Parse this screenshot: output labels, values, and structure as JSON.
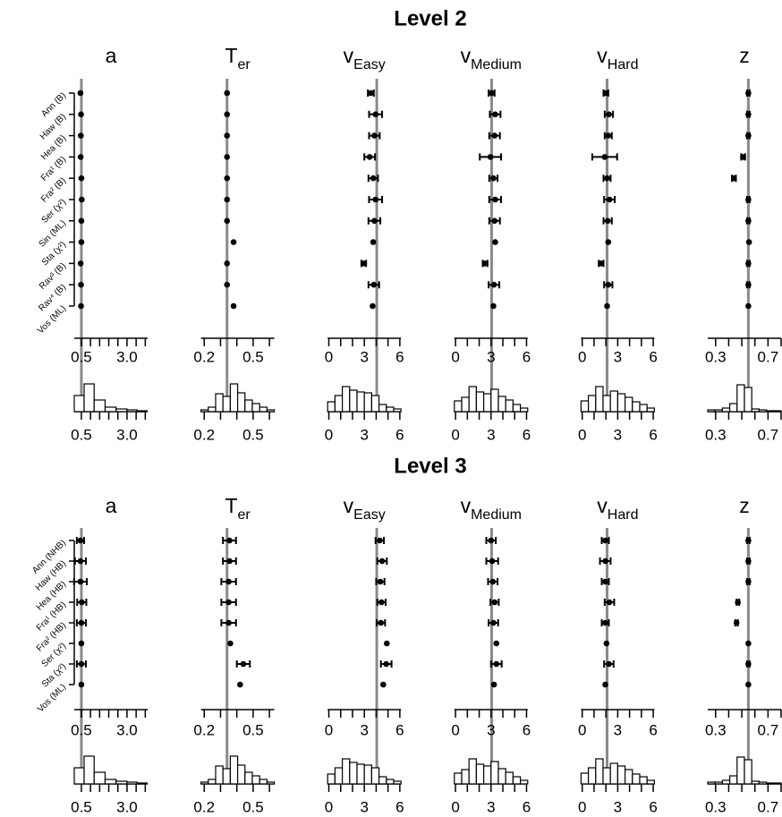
{
  "chart_data": [
    {
      "type": "forest",
      "title": "Level 2",
      "row_labels": [
        "Ann (B)",
        "Haw (B)",
        "Hea (B)",
        "Fra¹ (B)",
        "Fra² (B)",
        "Ser (χ²)",
        "Sin (ML)",
        "Sta (χ²)",
        "Rav³ (B)",
        "Rav⁴ (B)",
        "Vos (ML)"
      ],
      "panels": [
        {
          "symbol": "a",
          "xlim": [
            0.11,
            4.13
          ],
          "xticks": [
            0.5,
            {
              "value": 3,
              "label": "3.0"
            }
          ],
          "xminor": [
            1,
            1.5,
            2,
            2.5,
            3.5,
            4
          ],
          "ref": 0.5,
          "values": [
            0.45,
            0.48,
            0.47,
            0.46,
            0.5,
            0.52,
            0.5,
            0.5,
            0.46,
            0.48,
            0.48
          ],
          "errors": [
            null,
            null,
            null,
            null,
            null,
            null,
            null,
            null,
            null,
            null,
            null
          ],
          "hist": {
            "bins": [
              0.11,
              0.65,
              1.2,
              1.8,
              2.4,
              3.0,
              3.55,
              4.1
            ],
            "counts": [
              18,
              31,
              13,
              5,
              3,
              2,
              1
            ]
          }
        },
        {
          "symbol": "T",
          "subscript": "er",
          "xlim": [
            0.18,
            0.63
          ],
          "xticks": [
            0.2,
            0.5
          ],
          "xminor": [
            0.3,
            0.4,
            0.6
          ],
          "ref": 0.34,
          "values": [
            0.34,
            0.34,
            0.34,
            0.34,
            0.34,
            0.34,
            0.34,
            0.38,
            0.34,
            0.34,
            0.38
          ],
          "errors": [
            null,
            null,
            null,
            null,
            null,
            null,
            null,
            null,
            null,
            null,
            null
          ],
          "hist": {
            "bins": [
              0.18,
              0.225,
              0.27,
              0.315,
              0.36,
              0.405,
              0.45,
              0.495,
              0.54,
              0.585,
              0.63
            ],
            "counts": [
              2,
              5,
              20,
              17,
              31,
              21,
              13,
              9,
              5,
              2
            ]
          }
        },
        {
          "symbol": "v",
          "subscript": "Easy",
          "xlim": [
            -0.1,
            6.1
          ],
          "xticks": [
            0,
            3,
            6
          ],
          "xminor": [
            1,
            2,
            4,
            5
          ],
          "ref": 4.05,
          "values": [
            3.55,
            3.95,
            3.85,
            3.45,
            3.75,
            3.95,
            3.85,
            3.75,
            2.95,
            3.8,
            3.7
          ],
          "errors": [
            0.25,
            0.55,
            0.45,
            0.45,
            0.4,
            0.55,
            0.5,
            null,
            0.2,
            0.45,
            null
          ],
          "hist": {
            "bins": [
              -0.1,
              0.52,
              1.14,
              1.76,
              2.38,
              3.0,
              3.62,
              4.24,
              4.86,
              5.48,
              6.1
            ],
            "counts": [
              11,
              18,
              28,
              24,
              22,
              21,
              18,
              8,
              5,
              3
            ]
          }
        },
        {
          "symbol": "v",
          "subscript": "Medium",
          "xlim": [
            -0.1,
            6.1
          ],
          "xticks": [
            0,
            3,
            6
          ],
          "xminor": [
            1,
            2,
            4,
            5
          ],
          "ref": 3.05,
          "values": [
            3.05,
            3.35,
            3.3,
            2.95,
            3.2,
            3.35,
            3.3,
            3.35,
            2.5,
            3.25,
            3.2
          ],
          "errors": [
            0.25,
            0.45,
            0.45,
            0.9,
            0.35,
            0.5,
            0.45,
            null,
            0.2,
            0.45,
            null
          ],
          "hist": {
            "bins": [
              -0.1,
              0.52,
              1.14,
              1.76,
              2.38,
              3.0,
              3.62,
              4.24,
              4.86,
              5.48,
              6.1
            ],
            "counts": [
              12,
              16,
              28,
              22,
              20,
              25,
              17,
              13,
              8,
              4
            ]
          }
        },
        {
          "symbol": "v",
          "subscript": "Hard",
          "xlim": [
            -0.1,
            6.1
          ],
          "xticks": [
            0,
            3,
            6
          ],
          "xminor": [
            1,
            2,
            4,
            5
          ],
          "ref": 2.1,
          "values": [
            2.0,
            2.25,
            2.2,
            1.9,
            2.1,
            2.3,
            2.15,
            2.2,
            1.6,
            2.2,
            2.1
          ],
          "errors": [
            0.2,
            0.35,
            0.3,
            1.05,
            0.3,
            0.45,
            0.35,
            null,
            0.2,
            0.35,
            null
          ],
          "hist": {
            "bins": [
              -0.1,
              0.52,
              1.14,
              1.76,
              2.38,
              3.0,
              3.62,
              4.24,
              4.86,
              5.48,
              6.1
            ],
            "counts": [
              12,
              18,
              28,
              18,
              23,
              20,
              16,
              11,
              8,
              4
            ]
          }
        },
        {
          "symbol": "z",
          "xlim": [
            0.24,
            0.8
          ],
          "xticks": [
            0.3,
            0.7
          ],
          "xminor": [
            0.4,
            0.5,
            0.6,
            0.8
          ],
          "ref": 0.55,
          "values": [
            0.55,
            0.55,
            0.55,
            0.51,
            0.44,
            0.55,
            0.55,
            0.555,
            0.55,
            0.55,
            0.55
          ],
          "errors": [
            0.01,
            0.01,
            0.01,
            0.015,
            0.015,
            0.01,
            0.01,
            null,
            0.01,
            0.01,
            null
          ],
          "hist": {
            "bins": [
              0.24,
              0.296,
              0.352,
              0.408,
              0.464,
              0.52,
              0.576,
              0.632,
              0.688,
              0.744,
              0.8
            ],
            "counts": [
              2,
              2,
              4,
              9,
              30,
              27,
              3,
              2,
              1,
              1
            ]
          }
        }
      ]
    },
    {
      "type": "forest",
      "title": "Level 3",
      "row_labels": [
        "Ann (NHB)",
        "Haw (HB)",
        "Hea (HB)",
        "Fra¹ (HB)",
        "Fra² (HB)",
        "Ser (χ²)",
        "Sta (χ²)",
        "Vos (ML)"
      ],
      "panels": [
        {
          "symbol": "a",
          "xlim": [
            0.11,
            4.13
          ],
          "xticks": [
            0.5,
            {
              "value": 3,
              "label": "3.0"
            }
          ],
          "xminor": [
            1,
            1.5,
            2,
            2.5,
            3.5,
            4
          ],
          "ref": 0.5,
          "values": [
            0.45,
            0.45,
            0.45,
            0.52,
            0.5,
            0.5,
            0.5,
            0.5
          ],
          "errors": [
            0.2,
            0.3,
            0.35,
            0.25,
            0.25,
            null,
            0.25,
            null
          ],
          "hist": {
            "bins": [
              0.11,
              0.65,
              1.2,
              1.8,
              2.4,
              3.0,
              3.55,
              4.1
            ],
            "counts": [
              18,
              31,
              13,
              5,
              3,
              2,
              1
            ]
          }
        },
        {
          "symbol": "T",
          "subscript": "er",
          "xlim": [
            0.18,
            0.63
          ],
          "xticks": [
            0.2,
            0.5
          ],
          "xminor": [
            0.3,
            0.4,
            0.6
          ],
          "ref": 0.34,
          "values": [
            0.355,
            0.355,
            0.35,
            0.35,
            0.35,
            0.36,
            0.44,
            0.42
          ],
          "errors": [
            0.04,
            0.04,
            0.045,
            0.045,
            0.045,
            null,
            0.04,
            null
          ],
          "hist": {
            "bins": [
              0.18,
              0.225,
              0.27,
              0.315,
              0.36,
              0.405,
              0.45,
              0.495,
              0.54,
              0.585,
              0.63
            ],
            "counts": [
              2,
              5,
              20,
              17,
              31,
              21,
              13,
              9,
              5,
              2
            ]
          }
        },
        {
          "symbol": "v",
          "subscript": "Easy",
          "xlim": [
            -0.1,
            6.1
          ],
          "xticks": [
            0,
            3,
            6
          ],
          "xminor": [
            1,
            2,
            4,
            5
          ],
          "ref": 4.05,
          "values": [
            4.3,
            4.5,
            4.35,
            4.45,
            4.4,
            4.9,
            4.85,
            4.6
          ],
          "errors": [
            0.35,
            0.4,
            0.35,
            0.35,
            0.35,
            null,
            0.45,
            null
          ],
          "hist": {
            "bins": [
              -0.1,
              0.52,
              1.14,
              1.76,
              2.38,
              3.0,
              3.62,
              4.24,
              4.86,
              5.48,
              6.1
            ],
            "counts": [
              11,
              18,
              28,
              24,
              22,
              21,
              18,
              8,
              5,
              3
            ]
          }
        },
        {
          "symbol": "v",
          "subscript": "Medium",
          "xlim": [
            -0.1,
            6.1
          ],
          "xticks": [
            0,
            3,
            6
          ],
          "xminor": [
            1,
            2,
            4,
            5
          ],
          "ref": 3.05,
          "values": [
            3.0,
            3.1,
            3.15,
            3.3,
            3.2,
            3.45,
            3.45,
            3.25
          ],
          "errors": [
            0.4,
            0.5,
            0.4,
            0.35,
            0.4,
            null,
            0.45,
            null
          ],
          "hist": {
            "bins": [
              -0.1,
              0.52,
              1.14,
              1.76,
              2.38,
              3.0,
              3.62,
              4.24,
              4.86,
              5.48,
              6.1
            ],
            "counts": [
              12,
              16,
              28,
              22,
              20,
              25,
              17,
              13,
              8,
              4
            ]
          }
        },
        {
          "symbol": "v",
          "subscript": "Hard",
          "xlim": [
            -0.1,
            6.1
          ],
          "xticks": [
            0,
            3,
            6
          ],
          "xminor": [
            1,
            2,
            4,
            5
          ],
          "ref": 2.1,
          "values": [
            1.95,
            1.95,
            1.95,
            2.3,
            1.95,
            2.05,
            2.25,
            1.95
          ],
          "errors": [
            0.3,
            0.45,
            0.3,
            0.4,
            0.3,
            null,
            0.4,
            null
          ],
          "hist": {
            "bins": [
              -0.1,
              0.52,
              1.14,
              1.76,
              2.38,
              3.0,
              3.62,
              4.24,
              4.86,
              5.48,
              6.1
            ],
            "counts": [
              12,
              18,
              28,
              18,
              23,
              20,
              16,
              11,
              8,
              4
            ]
          }
        },
        {
          "symbol": "z",
          "xlim": [
            0.24,
            0.8
          ],
          "xticks": [
            0.3,
            0.7
          ],
          "xminor": [
            0.4,
            0.5,
            0.6,
            0.8
          ],
          "ref": 0.55,
          "values": [
            0.55,
            0.55,
            0.55,
            0.47,
            0.46,
            0.55,
            0.55,
            0.55
          ],
          "errors": [
            0.01,
            0.01,
            0.01,
            0.01,
            0.01,
            null,
            0.01,
            null
          ],
          "hist": {
            "bins": [
              0.24,
              0.296,
              0.352,
              0.408,
              0.464,
              0.52,
              0.576,
              0.632,
              0.688,
              0.744,
              0.8
            ],
            "counts": [
              2,
              2,
              4,
              9,
              30,
              27,
              3,
              2,
              1,
              1
            ]
          }
        }
      ]
    }
  ]
}
